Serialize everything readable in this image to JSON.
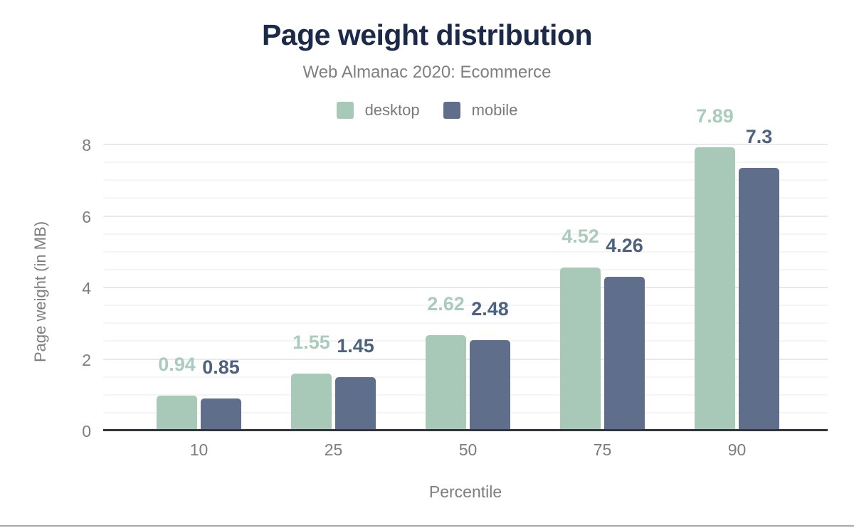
{
  "chart_data": {
    "type": "bar",
    "title": "Page weight distribution",
    "subtitle": "Web Almanac 2020: Ecommerce",
    "xlabel": "Percentile",
    "ylabel": "Page weight (in MB)",
    "categories": [
      "10",
      "25",
      "50",
      "75",
      "90"
    ],
    "series": [
      {
        "name": "desktop",
        "color": "#a8c8b8",
        "label_color": "#a9ccbd",
        "values": [
          0.94,
          1.55,
          2.62,
          4.52,
          7.89
        ]
      },
      {
        "name": "mobile",
        "color": "#5f6e8a",
        "label_color": "#4d6180",
        "values": [
          0.85,
          1.45,
          2.48,
          4.26,
          7.3
        ]
      }
    ],
    "ylim": [
      0,
      8
    ],
    "yticks": [
      0,
      2,
      4,
      6,
      8
    ],
    "minor_gridline_step": 0.5,
    "grid": "horizontal",
    "legend_position": "top",
    "data_labels_shown": true
  },
  "colors": {
    "title_navy": "#1b2a49",
    "muted_text_gray": "#7d7d7d",
    "axis_line": "#2f353c",
    "grid_major": "#e9e9e9",
    "grid_minor": "#f5f5f5",
    "footer_rule": "#a2a8b0",
    "background": "#ffffff"
  }
}
